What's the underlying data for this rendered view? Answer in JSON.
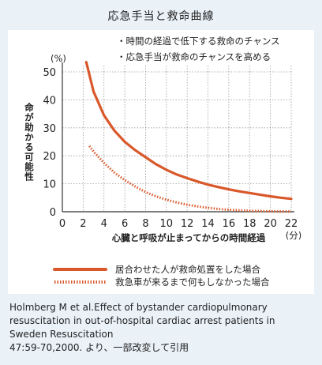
{
  "title": "応急手当と救命曲線",
  "notes": [
    "・時間の経過で低下する救命のチャンス",
    "・応急手当が救命のチャンスを高める"
  ],
  "citation": [
    "Holmberg M et al.Effect of bystander cardiopulmonary",
    "resuscitation in out-of-hospital cardiac arrest patients in",
    "Sweden Resuscitation",
    "47:59-70,2000. より、一部改変して引用"
  ],
  "chart_data": {
    "type": "line",
    "ylabel": "命が助かる可能性",
    "yunit": "(%)",
    "xlabel": "心臓と呼吸が止まってからの時間経過",
    "xunit": "(分)",
    "xlim": [
      0,
      22
    ],
    "ylim": [
      0,
      50
    ],
    "xticks": [
      0,
      2,
      4,
      6,
      8,
      10,
      12,
      14,
      16,
      18,
      20,
      22
    ],
    "yticks": [
      0,
      10,
      20,
      30,
      40,
      50
    ],
    "grid": "dotted",
    "series": [
      {
        "name": "居合わせた人が救命処置をした場合",
        "style": "solid",
        "color": "#d9582a",
        "x": [
          2.3,
          3,
          4,
          5,
          6,
          7,
          8,
          9,
          10,
          11,
          12,
          13,
          14,
          15,
          16,
          17,
          18,
          19,
          20,
          21,
          22
        ],
        "y": [
          53.5,
          43,
          34.5,
          29,
          25,
          22,
          19.5,
          17,
          15,
          13.3,
          12,
          10.8,
          9.7,
          8.8,
          8,
          7.3,
          6.7,
          6.1,
          5.5,
          5.0,
          4.6
        ]
      },
      {
        "name": "救急車が来るまで何もしなかった場合",
        "style": "dotted",
        "color": "#d9582a",
        "x": [
          2.6,
          3,
          4,
          5,
          6,
          7,
          8,
          9,
          10,
          11,
          12,
          13,
          14,
          15,
          16,
          17,
          18,
          19,
          20,
          21,
          22
        ],
        "y": [
          23.5,
          21.5,
          17.5,
          14,
          11.3,
          9,
          7,
          5.5,
          4.3,
          3.3,
          2.5,
          1.9,
          1.4,
          1.0,
          0.7,
          0.5,
          0.35,
          0.25,
          0.15,
          0.1,
          0.05
        ]
      }
    ]
  }
}
